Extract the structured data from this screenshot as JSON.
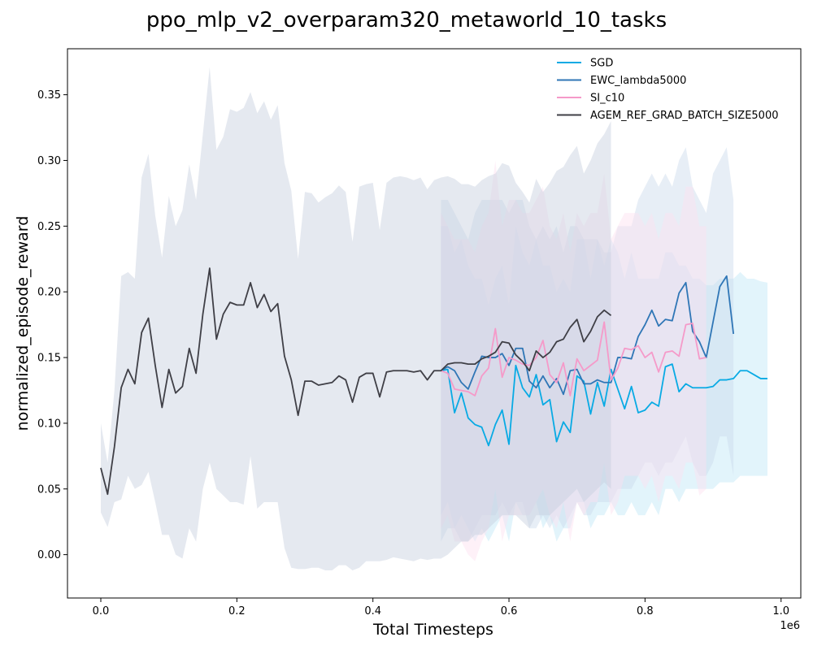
{
  "chart_data": {
    "type": "line",
    "title": "ppo_mlp_v2_overparam320_metaworld_10_tasks",
    "xlabel": "Total Timesteps",
    "ylabel": "normalized_episode_reward",
    "x_offset_label": "1e6",
    "xlim": [
      -0.049,
      1.029
    ],
    "ylim": [
      -0.033,
      0.385
    ],
    "x_ticks": [
      "0.0",
      "0.2",
      "0.4",
      "0.6",
      "0.8",
      "1.0"
    ],
    "y_ticks": [
      "0.00",
      "0.05",
      "0.10",
      "0.15",
      "0.20",
      "0.25",
      "0.30",
      "0.35"
    ],
    "legend_position": "top-right",
    "series": [
      {
        "name": "SGD",
        "color": "#08aae4",
        "band_color": "#bfe6f6",
        "x": [
          0.5,
          0.51,
          0.52,
          0.53,
          0.54,
          0.55,
          0.56,
          0.57,
          0.58,
          0.59,
          0.6,
          0.61,
          0.62,
          0.63,
          0.64,
          0.65,
          0.66,
          0.67,
          0.68,
          0.69,
          0.7,
          0.71,
          0.72,
          0.73,
          0.74,
          0.75,
          0.76,
          0.77,
          0.78,
          0.79,
          0.8,
          0.81,
          0.82,
          0.83,
          0.84,
          0.85,
          0.86,
          0.87,
          0.88,
          0.89,
          0.9,
          0.91,
          0.92,
          0.93,
          0.94,
          0.95,
          0.96,
          0.97,
          0.98
        ],
        "y": [
          0.14,
          0.141,
          0.108,
          0.123,
          0.104,
          0.099,
          0.097,
          0.083,
          0.099,
          0.11,
          0.084,
          0.144,
          0.127,
          0.12,
          0.137,
          0.114,
          0.118,
          0.086,
          0.101,
          0.093,
          0.136,
          0.132,
          0.107,
          0.131,
          0.113,
          0.141,
          0.126,
          0.111,
          0.128,
          0.108,
          0.11,
          0.116,
          0.113,
          0.143,
          0.145,
          0.124,
          0.13,
          0.127,
          0.127,
          0.127,
          0.128,
          0.133,
          0.133,
          0.134,
          0.14,
          0.14,
          0.137,
          0.134,
          0.134
        ],
        "lower": [
          0.03,
          0.04,
          0.02,
          0.03,
          0.02,
          0.01,
          0.02,
          0.01,
          0.02,
          0.03,
          0.01,
          0.04,
          0.03,
          0.03,
          0.04,
          0.02,
          0.03,
          0.01,
          0.02,
          0.02,
          0.04,
          0.04,
          0.02,
          0.03,
          0.03,
          0.04,
          0.03,
          0.03,
          0.04,
          0.03,
          0.03,
          0.04,
          0.03,
          0.05,
          0.05,
          0.04,
          0.05,
          0.05,
          0.05,
          0.05,
          0.05,
          0.055,
          0.055,
          0.055,
          0.06,
          0.06,
          0.06,
          0.06,
          0.06
        ],
        "upper": [
          0.25,
          0.25,
          0.23,
          0.24,
          0.22,
          0.21,
          0.21,
          0.19,
          0.21,
          0.22,
          0.19,
          0.25,
          0.23,
          0.22,
          0.24,
          0.22,
          0.22,
          0.2,
          0.21,
          0.2,
          0.24,
          0.24,
          0.21,
          0.24,
          0.22,
          0.24,
          0.23,
          0.21,
          0.23,
          0.21,
          0.21,
          0.21,
          0.21,
          0.23,
          0.23,
          0.22,
          0.22,
          0.21,
          0.21,
          0.205,
          0.205,
          0.21,
          0.21,
          0.21,
          0.215,
          0.21,
          0.21,
          0.208,
          0.207
        ]
      },
      {
        "name": "EWC_lambda5000",
        "color": "#2f76b6",
        "band_color": "#c9d9ec",
        "x": [
          0.5,
          0.51,
          0.52,
          0.53,
          0.54,
          0.55,
          0.56,
          0.57,
          0.58,
          0.59,
          0.6,
          0.61,
          0.62,
          0.63,
          0.64,
          0.65,
          0.66,
          0.67,
          0.68,
          0.69,
          0.7,
          0.71,
          0.72,
          0.73,
          0.74,
          0.75,
          0.76,
          0.77,
          0.78,
          0.79,
          0.8,
          0.81,
          0.82,
          0.83,
          0.84,
          0.85,
          0.86,
          0.87,
          0.88,
          0.89,
          0.9,
          0.91,
          0.92,
          0.93
        ],
        "y": [
          0.14,
          0.143,
          0.14,
          0.131,
          0.126,
          0.139,
          0.151,
          0.15,
          0.15,
          0.153,
          0.144,
          0.157,
          0.157,
          0.132,
          0.127,
          0.136,
          0.127,
          0.134,
          0.122,
          0.14,
          0.141,
          0.13,
          0.13,
          0.133,
          0.131,
          0.131,
          0.15,
          0.15,
          0.149,
          0.166,
          0.175,
          0.186,
          0.174,
          0.179,
          0.178,
          0.199,
          0.207,
          0.17,
          0.162,
          0.15,
          0.177,
          0.204,
          0.212,
          0.168
        ],
        "lower": [
          0.01,
          0.02,
          0.02,
          0.01,
          0.01,
          0.02,
          0.03,
          0.03,
          0.03,
          0.04,
          0.03,
          0.04,
          0.04,
          0.02,
          0.02,
          0.03,
          0.02,
          0.03,
          0.02,
          0.03,
          0.04,
          0.03,
          0.03,
          0.04,
          0.04,
          0.04,
          0.05,
          0.05,
          0.05,
          0.06,
          0.07,
          0.07,
          0.06,
          0.07,
          0.07,
          0.08,
          0.09,
          0.07,
          0.06,
          0.06,
          0.07,
          0.09,
          0.09,
          0.06
        ],
        "upper": [
          0.27,
          0.27,
          0.26,
          0.25,
          0.24,
          0.26,
          0.27,
          0.27,
          0.27,
          0.27,
          0.26,
          0.27,
          0.27,
          0.25,
          0.24,
          0.25,
          0.24,
          0.25,
          0.23,
          0.25,
          0.25,
          0.24,
          0.24,
          0.24,
          0.23,
          0.23,
          0.25,
          0.25,
          0.25,
          0.27,
          0.28,
          0.29,
          0.28,
          0.29,
          0.28,
          0.3,
          0.31,
          0.28,
          0.27,
          0.26,
          0.29,
          0.3,
          0.31,
          0.27
        ]
      },
      {
        "name": "SI_c10",
        "color": "#f59ac9",
        "band_color": "#fce0ef",
        "x": [
          0.5,
          0.51,
          0.52,
          0.53,
          0.54,
          0.55,
          0.56,
          0.57,
          0.58,
          0.59,
          0.6,
          0.61,
          0.62,
          0.63,
          0.64,
          0.65,
          0.66,
          0.67,
          0.68,
          0.69,
          0.7,
          0.71,
          0.72,
          0.73,
          0.74,
          0.75,
          0.76,
          0.77,
          0.78,
          0.79,
          0.8,
          0.81,
          0.82,
          0.83,
          0.84,
          0.85,
          0.86,
          0.87,
          0.88,
          0.89
        ],
        "y": [
          0.14,
          0.138,
          0.126,
          0.125,
          0.124,
          0.121,
          0.136,
          0.142,
          0.172,
          0.135,
          0.15,
          0.148,
          0.145,
          0.144,
          0.15,
          0.163,
          0.137,
          0.131,
          0.146,
          0.121,
          0.149,
          0.14,
          0.144,
          0.148,
          0.177,
          0.133,
          0.142,
          0.157,
          0.156,
          0.159,
          0.15,
          0.154,
          0.139,
          0.154,
          0.155,
          0.151,
          0.175,
          0.176,
          0.149,
          0.15
        ],
        "lower": [
          0.02,
          0.03,
          0.01,
          0.01,
          0.0,
          -0.005,
          0.01,
          0.02,
          0.05,
          0.01,
          0.03,
          0.03,
          0.03,
          0.03,
          0.04,
          0.05,
          0.03,
          0.02,
          0.04,
          0.01,
          0.04,
          0.03,
          0.04,
          0.04,
          0.07,
          0.03,
          0.04,
          0.06,
          0.06,
          0.06,
          0.05,
          0.06,
          0.04,
          0.06,
          0.06,
          0.05,
          0.07,
          0.07,
          0.045,
          0.05
        ],
        "upper": [
          0.26,
          0.25,
          0.24,
          0.24,
          0.24,
          0.23,
          0.25,
          0.26,
          0.3,
          0.25,
          0.27,
          0.27,
          0.26,
          0.26,
          0.27,
          0.28,
          0.25,
          0.24,
          0.26,
          0.23,
          0.26,
          0.25,
          0.26,
          0.26,
          0.29,
          0.24,
          0.25,
          0.26,
          0.26,
          0.26,
          0.25,
          0.26,
          0.24,
          0.26,
          0.26,
          0.25,
          0.28,
          0.28,
          0.25,
          0.25
        ]
      },
      {
        "name": "AGEM_REF_GRAD_BATCH_SIZE5000",
        "color": "#3f3f46",
        "band_color": "#c6cfde",
        "x": [
          0.0,
          0.01,
          0.02,
          0.03,
          0.04,
          0.05,
          0.06,
          0.07,
          0.08,
          0.09,
          0.1,
          0.11,
          0.12,
          0.13,
          0.14,
          0.15,
          0.16,
          0.17,
          0.18,
          0.19,
          0.2,
          0.21,
          0.22,
          0.23,
          0.24,
          0.25,
          0.26,
          0.27,
          0.28,
          0.29,
          0.3,
          0.31,
          0.32,
          0.33,
          0.34,
          0.35,
          0.36,
          0.37,
          0.38,
          0.39,
          0.4,
          0.41,
          0.42,
          0.43,
          0.44,
          0.45,
          0.46,
          0.47,
          0.48,
          0.49,
          0.5,
          0.51,
          0.52,
          0.53,
          0.54,
          0.55,
          0.56,
          0.57,
          0.58,
          0.59,
          0.6,
          0.61,
          0.62,
          0.63,
          0.64,
          0.65,
          0.66,
          0.67,
          0.68,
          0.69,
          0.7,
          0.71,
          0.72,
          0.73,
          0.74,
          0.75
        ],
        "y": [
          0.066,
          0.046,
          0.082,
          0.127,
          0.141,
          0.13,
          0.169,
          0.18,
          0.144,
          0.112,
          0.141,
          0.123,
          0.128,
          0.157,
          0.138,
          0.183,
          0.218,
          0.164,
          0.183,
          0.192,
          0.19,
          0.19,
          0.207,
          0.188,
          0.198,
          0.185,
          0.191,
          0.151,
          0.133,
          0.106,
          0.132,
          0.132,
          0.129,
          0.13,
          0.131,
          0.136,
          0.133,
          0.116,
          0.135,
          0.138,
          0.138,
          0.12,
          0.139,
          0.14,
          0.14,
          0.14,
          0.139,
          0.14,
          0.133,
          0.14,
          0.14,
          0.145,
          0.146,
          0.146,
          0.145,
          0.145,
          0.149,
          0.151,
          0.154,
          0.162,
          0.161,
          0.152,
          0.147,
          0.14,
          0.155,
          0.15,
          0.154,
          0.162,
          0.164,
          0.173,
          0.179,
          0.162,
          0.17,
          0.181,
          0.186,
          0.182
        ],
        "lower": [
          0.032,
          0.021,
          0.04,
          0.042,
          0.06,
          0.05,
          0.053,
          0.063,
          0.04,
          0.015,
          0.015,
          0.0,
          -0.003,
          0.02,
          0.01,
          0.05,
          0.07,
          0.05,
          0.045,
          0.04,
          0.04,
          0.038,
          0.075,
          0.035,
          0.04,
          0.04,
          0.04,
          0.005,
          -0.01,
          -0.011,
          -0.011,
          -0.01,
          -0.01,
          -0.012,
          -0.012,
          -0.008,
          -0.008,
          -0.012,
          -0.01,
          -0.005,
          -0.005,
          -0.005,
          -0.004,
          -0.002,
          -0.003,
          -0.004,
          -0.005,
          -0.003,
          -0.004,
          -0.003,
          -0.003,
          0.0,
          0.005,
          0.01,
          0.01,
          0.015,
          0.015,
          0.02,
          0.025,
          0.03,
          0.03,
          0.03,
          0.025,
          0.02,
          0.03,
          0.03,
          0.03,
          0.035,
          0.04,
          0.045,
          0.05,
          0.04,
          0.045,
          0.05,
          0.055,
          0.05
        ],
        "upper": [
          0.1,
          0.07,
          0.125,
          0.212,
          0.215,
          0.21,
          0.287,
          0.305,
          0.258,
          0.226,
          0.273,
          0.25,
          0.262,
          0.297,
          0.27,
          0.32,
          0.371,
          0.308,
          0.318,
          0.339,
          0.337,
          0.34,
          0.352,
          0.336,
          0.345,
          0.331,
          0.342,
          0.298,
          0.277,
          0.225,
          0.276,
          0.275,
          0.268,
          0.272,
          0.275,
          0.281,
          0.276,
          0.238,
          0.28,
          0.282,
          0.283,
          0.247,
          0.283,
          0.287,
          0.288,
          0.287,
          0.285,
          0.287,
          0.278,
          0.285,
          0.287,
          0.288,
          0.286,
          0.282,
          0.282,
          0.28,
          0.285,
          0.288,
          0.29,
          0.298,
          0.296,
          0.283,
          0.276,
          0.268,
          0.286,
          0.276,
          0.283,
          0.292,
          0.295,
          0.304,
          0.311,
          0.29,
          0.3,
          0.313,
          0.32,
          0.33
        ]
      }
    ]
  }
}
